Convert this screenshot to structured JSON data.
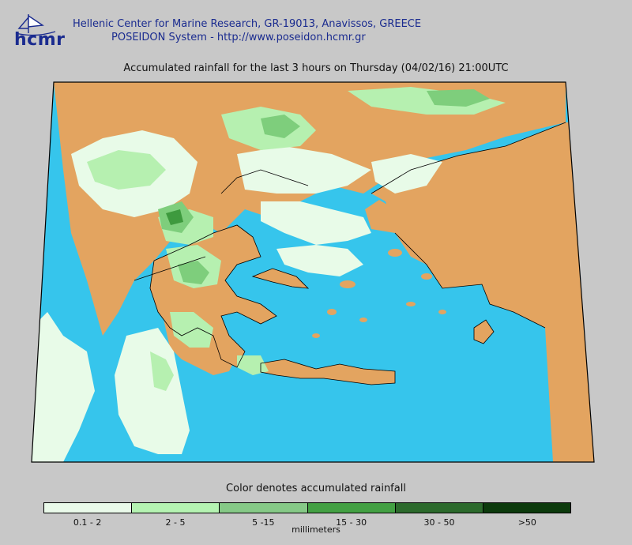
{
  "header": {
    "logo_text": "hcmr",
    "institution_line1": "Hellenic Center for Marine Research, GR-19013, Anavissos, GREECE",
    "institution_line2": "POSEIDON System - http://www.poseidon.hcmr.gr"
  },
  "map": {
    "title": "Accumulated rainfall for the last 3 hours on Thursday (04/02/16) 21:00UTC",
    "colors": {
      "sea": "#36c5ec",
      "land_dry": "#e3a460",
      "rain_0_1_2": "#e8fbe8",
      "rain_2_5": "#b6f0b0",
      "rain_5_15": "#7ece7c",
      "rain_15_30": "#3e9a3e",
      "frame": "#000000"
    }
  },
  "legend": {
    "title": "Color denotes accumulated rainfall",
    "unit": "millimeters",
    "classes": [
      {
        "label": "0.1 - 2",
        "color": "#eafaea"
      },
      {
        "label": "2 - 5",
        "color": "#b5f3b2"
      },
      {
        "label": "5 -15",
        "color": "#86c987"
      },
      {
        "label": "15 - 30",
        "color": "#43a043"
      },
      {
        "label": "30 - 50",
        "color": "#2c6a2c"
      },
      {
        "label": ">50",
        "color": "#0c3a0c"
      }
    ]
  }
}
